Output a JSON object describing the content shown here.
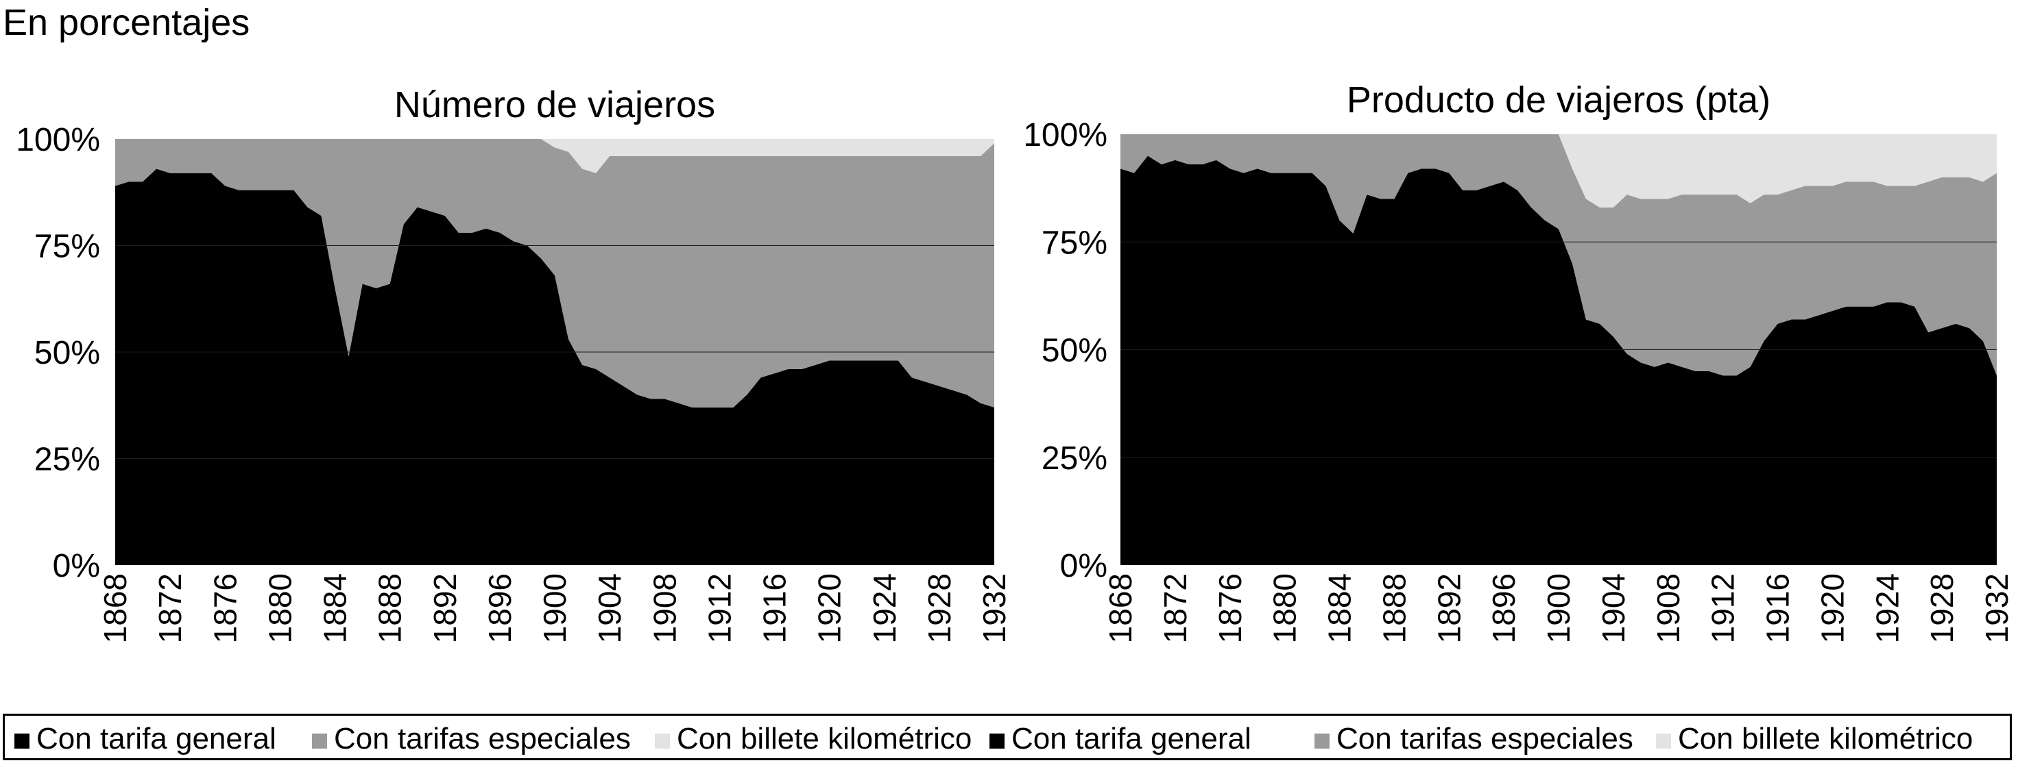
{
  "page_title": "En porcentajes",
  "colors": {
    "general": "#000000",
    "especiales": "#9a9a9a",
    "kilometrico": "#e3e3e3",
    "background": "#ffffff"
  },
  "legend": [
    {
      "label": "Con tarifa general",
      "color": "#000000"
    },
    {
      "label": "Con tarifas especiales",
      "color": "#9a9a9a"
    },
    {
      "label": "Con billete kilométrico",
      "color": "#e3e3e3"
    },
    {
      "label": "Con tarifa general",
      "color": "#000000"
    },
    {
      "label": "Con tarifas especiales",
      "color": "#9a9a9a"
    },
    {
      "label": "Con billete kilométrico",
      "color": "#e3e3e3"
    }
  ],
  "chart_data": [
    {
      "type": "area",
      "stacked": true,
      "title": "Número de viajeros",
      "xlabel": "",
      "ylabel": "",
      "xlim": [
        1868,
        1932
      ],
      "ylim": [
        0,
        100
      ],
      "yticks": [
        "0%",
        "25%",
        "50%",
        "75%",
        "100%"
      ],
      "xticks": [
        "1868",
        "1872",
        "1876",
        "1880",
        "1884",
        "1888",
        "1892",
        "1896",
        "1900",
        "1904",
        "1908",
        "1912",
        "1916",
        "1920",
        "1924",
        "1928",
        "1932"
      ],
      "x": [
        1868,
        1869,
        1870,
        1871,
        1872,
        1873,
        1874,
        1875,
        1876,
        1877,
        1878,
        1879,
        1880,
        1881,
        1882,
        1883,
        1884,
        1885,
        1886,
        1887,
        1888,
        1889,
        1890,
        1891,
        1892,
        1893,
        1894,
        1895,
        1896,
        1897,
        1898,
        1899,
        1900,
        1901,
        1902,
        1903,
        1904,
        1905,
        1906,
        1907,
        1908,
        1909,
        1910,
        1911,
        1912,
        1913,
        1914,
        1915,
        1916,
        1917,
        1918,
        1919,
        1920,
        1921,
        1922,
        1923,
        1924,
        1925,
        1926,
        1927,
        1928,
        1929,
        1930,
        1931,
        1932
      ],
      "series": [
        {
          "name": "Con tarifa general",
          "values": [
            89,
            90,
            90,
            93,
            92,
            92,
            92,
            92,
            89,
            88,
            88,
            88,
            88,
            88,
            84,
            82,
            65,
            49,
            66,
            65,
            66,
            80,
            84,
            83,
            82,
            78,
            78,
            79,
            78,
            76,
            75,
            72,
            68,
            53,
            47,
            46,
            44,
            42,
            40,
            39,
            39,
            38,
            37,
            37,
            37,
            37,
            40,
            44,
            45,
            46,
            46,
            47,
            48,
            48,
            48,
            48,
            48,
            48,
            44,
            43,
            42,
            41,
            40,
            38,
            37
          ]
        },
        {
          "name": "Con tarifas especiales",
          "values": [
            11,
            10,
            10,
            7,
            8,
            8,
            8,
            8,
            11,
            12,
            12,
            12,
            12,
            12,
            16,
            18,
            35,
            51,
            34,
            35,
            34,
            20,
            16,
            17,
            18,
            22,
            22,
            21,
            22,
            24,
            25,
            28,
            30,
            44,
            46,
            46,
            52,
            54,
            56,
            57,
            57,
            58,
            59,
            59,
            59,
            59,
            56,
            52,
            51,
            50,
            50,
            49,
            48,
            48,
            48,
            48,
            48,
            48,
            52,
            53,
            54,
            55,
            56,
            58,
            62
          ]
        },
        {
          "name": "Con billete kilométrico",
          "values": [
            0,
            0,
            0,
            0,
            0,
            0,
            0,
            0,
            0,
            0,
            0,
            0,
            0,
            0,
            0,
            0,
            0,
            0,
            0,
            0,
            0,
            0,
            0,
            0,
            0,
            0,
            0,
            0,
            0,
            0,
            0,
            0,
            2,
            3,
            7,
            8,
            4,
            4,
            4,
            4,
            4,
            4,
            4,
            4,
            4,
            4,
            4,
            4,
            4,
            4,
            4,
            4,
            4,
            4,
            4,
            4,
            4,
            4,
            4,
            4,
            4,
            4,
            4,
            4,
            1
          ]
        }
      ]
    },
    {
      "type": "area",
      "stacked": true,
      "title": "Producto de viajeros (pta)",
      "xlabel": "",
      "ylabel": "",
      "xlim": [
        1868,
        1932
      ],
      "ylim": [
        0,
        100
      ],
      "yticks": [
        "0%",
        "25%",
        "50%",
        "75%",
        "100%"
      ],
      "xticks": [
        "1868",
        "1872",
        "1876",
        "1880",
        "1884",
        "1888",
        "1892",
        "1896",
        "1900",
        "1904",
        "1908",
        "1912",
        "1916",
        "1920",
        "1924",
        "1928",
        "1932"
      ],
      "x": [
        1868,
        1869,
        1870,
        1871,
        1872,
        1873,
        1874,
        1875,
        1876,
        1877,
        1878,
        1879,
        1880,
        1881,
        1882,
        1883,
        1884,
        1885,
        1886,
        1887,
        1888,
        1889,
        1890,
        1891,
        1892,
        1893,
        1894,
        1895,
        1896,
        1897,
        1898,
        1899,
        1900,
        1901,
        1902,
        1903,
        1904,
        1905,
        1906,
        1907,
        1908,
        1909,
        1910,
        1911,
        1912,
        1913,
        1914,
        1915,
        1916,
        1917,
        1918,
        1919,
        1920,
        1921,
        1922,
        1923,
        1924,
        1925,
        1926,
        1927,
        1928,
        1929,
        1930,
        1931,
        1932
      ],
      "series": [
        {
          "name": "Con tarifa general",
          "values": [
            92,
            91,
            95,
            93,
            94,
            93,
            93,
            94,
            92,
            91,
            92,
            91,
            91,
            91,
            91,
            88,
            80,
            77,
            86,
            85,
            85,
            91,
            92,
            92,
            91,
            87,
            87,
            88,
            89,
            87,
            83,
            80,
            78,
            70,
            57,
            56,
            53,
            49,
            47,
            46,
            47,
            46,
            45,
            45,
            44,
            44,
            46,
            52,
            56,
            57,
            57,
            58,
            59,
            60,
            60,
            60,
            61,
            61,
            60,
            54,
            55,
            56,
            55,
            52,
            44
          ]
        },
        {
          "name": "Con tarifas especiales",
          "values": [
            8,
            9,
            5,
            7,
            6,
            7,
            7,
            6,
            8,
            9,
            8,
            9,
            9,
            9,
            9,
            12,
            20,
            23,
            14,
            15,
            15,
            9,
            8,
            8,
            9,
            13,
            13,
            12,
            11,
            13,
            17,
            20,
            22,
            22,
            28,
            27,
            30,
            37,
            38,
            39,
            38,
            40,
            41,
            41,
            42,
            42,
            38,
            34,
            30,
            30,
            31,
            30,
            29,
            29,
            29,
            29,
            27,
            27,
            28,
            35,
            35,
            34,
            35,
            37,
            47
          ]
        },
        {
          "name": "Con billete kilométrico",
          "values": [
            0,
            0,
            0,
            0,
            0,
            0,
            0,
            0,
            0,
            0,
            0,
            0,
            0,
            0,
            0,
            0,
            0,
            0,
            0,
            0,
            0,
            0,
            0,
            0,
            0,
            0,
            0,
            0,
            0,
            0,
            0,
            0,
            0,
            8,
            15,
            17,
            17,
            14,
            15,
            15,
            15,
            14,
            14,
            14,
            14,
            14,
            16,
            14,
            14,
            13,
            12,
            12,
            12,
            11,
            11,
            11,
            12,
            12,
            12,
            11,
            10,
            10,
            10,
            11,
            9
          ]
        }
      ]
    }
  ]
}
